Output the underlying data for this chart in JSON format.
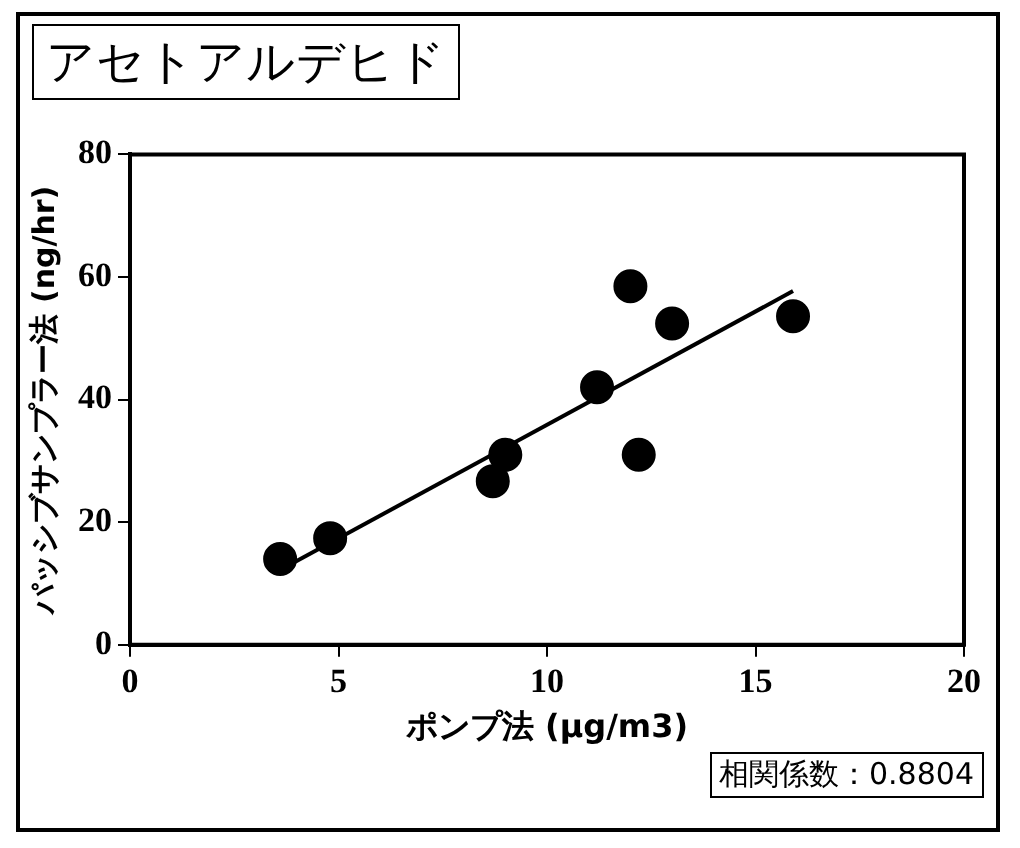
{
  "chart_data": {
    "type": "scatter",
    "title": "アセトアルデヒド",
    "xlabel": "ポンプ法 (μg/m3)",
    "ylabel": "パッシブサンプラー法 (ng/hr)",
    "xlim": [
      0,
      20
    ],
    "xticks": [
      0,
      5,
      10,
      15,
      20
    ],
    "ylim": [
      0,
      80
    ],
    "yticks": [
      0,
      20,
      40,
      60,
      80
    ],
    "grid": false,
    "legend": false,
    "marker": "circle",
    "series": [
      {
        "color": "#000000",
        "x": [
          3.6,
          4.8,
          8.7,
          9.0,
          11.2,
          12.0,
          12.2,
          13.0,
          15.9
        ],
        "values": [
          14,
          17.4,
          26.7,
          31,
          42,
          58.5,
          31,
          52.4,
          53.6
        ]
      },
      {
        "type": "line",
        "marker": "none",
        "line_style": "solid",
        "color": "#000000",
        "x": [
          3.6,
          15.9
        ],
        "values": [
          12.2,
          57.7
        ]
      }
    ],
    "annotations": [
      "相関係数：0.8804"
    ]
  }
}
